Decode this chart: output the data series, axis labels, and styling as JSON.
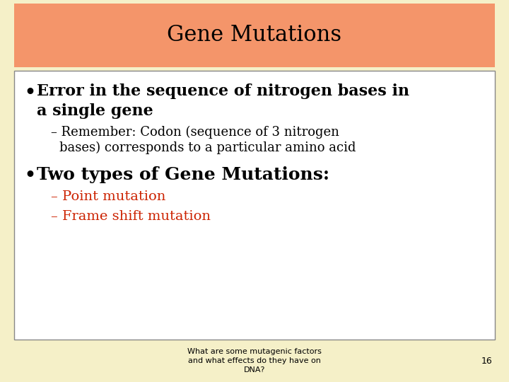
{
  "title": "Gene Mutations",
  "title_bg_color": "#F4956A",
  "slide_bg_color": "#F5F0C8",
  "content_bg_color": "#FFFFFF",
  "content_border_color": "#888888",
  "bullet1_line1": "Error in the sequence of nitrogen bases in",
  "bullet1_line2": "a single gene",
  "sub1_line1": "– Remember: Codon (sequence of 3 nitrogen",
  "sub1_line2": "   bases) corresponds to a particular amino acid",
  "bullet2": "Two types of Gene Mutations:",
  "sub2a": "– Point mutation",
  "sub2b": "– Frame shift mutation",
  "footer": "What are some mutagenic factors\nand what effects do they have on\nDNA?",
  "page_num": "16",
  "black": "#000000",
  "red_color": "#CC2200",
  "title_fontsize": 22,
  "bullet_fontsize": 16,
  "sub_fontsize": 13,
  "red_fontsize": 14,
  "footer_fontsize": 8
}
